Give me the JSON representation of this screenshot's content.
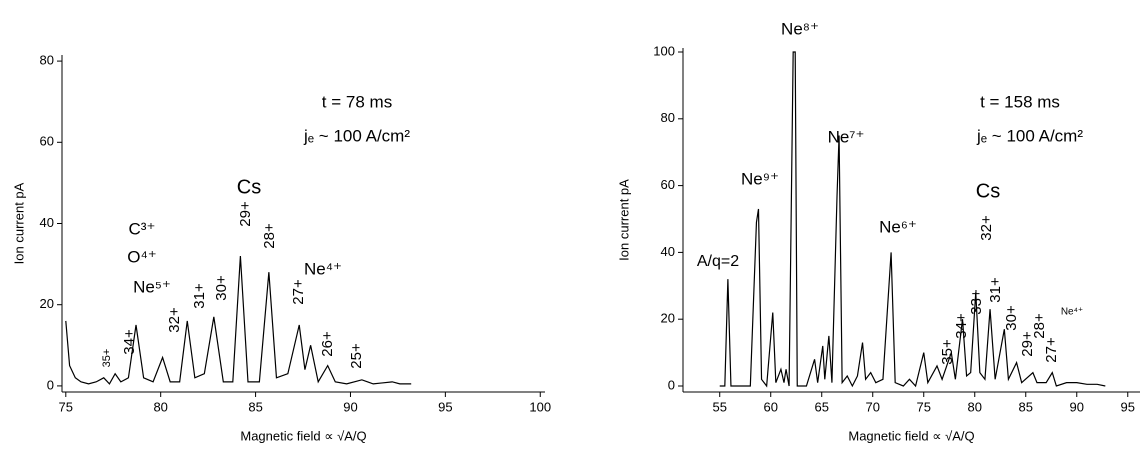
{
  "chart_data": [
    {
      "type": "line",
      "color": "#000000",
      "x_label": "Magnetic field ∝ √A/Q",
      "y_label": "Ion current pA",
      "xlim": [
        74.8,
        100.25
      ],
      "ylim": [
        -1.5,
        81.5
      ],
      "xticks": [
        75,
        80,
        85,
        90,
        95,
        100
      ],
      "yticks": [
        0,
        20,
        40,
        60,
        80
      ],
      "x": [
        75.0,
        75.2,
        75.5,
        75.8,
        76.2,
        76.6,
        77.0,
        77.3,
        77.6,
        77.9,
        78.3,
        78.7,
        79.1,
        79.6,
        80.1,
        80.5,
        81.0,
        81.4,
        81.8,
        82.3,
        82.8,
        83.3,
        83.8,
        84.2,
        84.6,
        85.2,
        85.7,
        86.1,
        86.7,
        87.3,
        87.6,
        87.9,
        88.3,
        88.8,
        89.2,
        89.8,
        90.6,
        91.2,
        92.2,
        92.6,
        93.2
      ],
      "values": [
        16,
        5,
        2,
        1,
        0.5,
        1,
        2,
        0.5,
        3,
        1,
        2,
        15,
        2,
        1,
        7,
        1,
        1,
        16,
        2,
        3,
        17,
        1,
        1,
        32,
        1,
        1,
        28,
        2,
        3,
        15,
        4,
        10,
        1,
        5,
        1,
        0.5,
        1.5,
        0.5,
        1,
        0.5,
        0.5
      ],
      "annotations": [
        "t = 78 ms",
        "jₑ ~ 100 A/cm²",
        "Cs",
        "C³⁺",
        "O⁴⁺",
        "Ne⁵⁺",
        "Ne⁴⁺",
        "35+",
        "34+",
        "32+",
        "31+",
        "30+",
        "29+",
        "28+",
        "27+",
        "26+",
        "25+"
      ]
    },
    {
      "type": "line",
      "color": "#000000",
      "x_label": "Magnetic field ∝ √A/Q",
      "y_label": "Ion current pA",
      "xlim": [
        51.4,
        96.2
      ],
      "ylim": [
        -1.8,
        101.2
      ],
      "xticks": [
        55,
        60,
        65,
        70,
        75,
        80,
        85,
        90,
        95
      ],
      "yticks": [
        0,
        20,
        40,
        60,
        80,
        100
      ],
      "x": [
        55.0,
        55.5,
        55.8,
        56.1,
        57.0,
        58.0,
        58.6,
        58.8,
        59.1,
        59.6,
        60.2,
        60.5,
        61.0,
        61.3,
        61.5,
        61.8,
        62.2,
        62.4,
        62.6,
        63.5,
        64.3,
        64.6,
        65.1,
        65.3,
        65.7,
        66.0,
        66.5,
        66.7,
        67.0,
        67.5,
        68.0,
        68.5,
        69.0,
        69.3,
        69.8,
        70.3,
        71.0,
        71.8,
        72.2,
        73.0,
        73.6,
        74.2,
        75.0,
        75.4,
        76.3,
        76.8,
        77.7,
        78.1,
        78.8,
        79.2,
        79.6,
        80.1,
        80.5,
        81.0,
        81.5,
        82.0,
        82.9,
        83.3,
        84.1,
        84.6,
        85.7,
        86.1,
        87.0,
        87.6,
        88.0,
        89.0,
        90.0,
        91.0,
        92.0,
        92.8
      ],
      "values": [
        0,
        0,
        32,
        0,
        0,
        0,
        49,
        53,
        2,
        0,
        22,
        1,
        5,
        1,
        5,
        0,
        100,
        100,
        0,
        0,
        8,
        1,
        12,
        2,
        15,
        1,
        57,
        75,
        1,
        3,
        0,
        3,
        13,
        2,
        4,
        1,
        2,
        40,
        1,
        0,
        2,
        0,
        10,
        1,
        6,
        2,
        10,
        2,
        20,
        3,
        4,
        28,
        4,
        2,
        23,
        2,
        17,
        2,
        7,
        1,
        4,
        1,
        1,
        4,
        0,
        1,
        1,
        0.5,
        0.5,
        0
      ],
      "annotations": [
        "Ne⁸⁺",
        "Ne⁹⁺",
        "Ne⁷⁺",
        "Ne⁶⁺",
        "A/q=2",
        "Cs",
        "t = 158 ms",
        "jₑ ~ 100 A/cm²",
        "35+",
        "34+",
        "33+",
        "32+",
        "31+",
        "30+",
        "29+",
        "28+",
        "27+",
        "Ne⁴⁺"
      ]
    }
  ]
}
